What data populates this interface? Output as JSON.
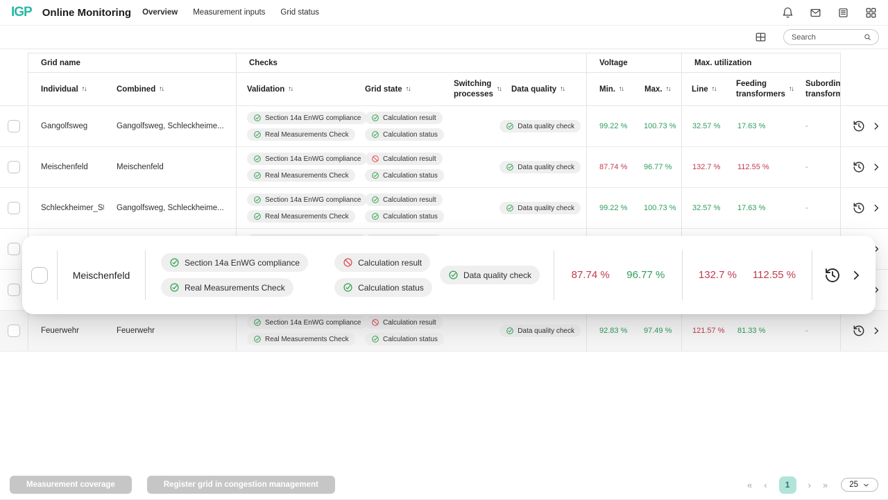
{
  "brand": {
    "logo_text": "IGP",
    "accent_color": "#2ab7a4"
  },
  "header": {
    "title": "Online Monitoring",
    "nav": [
      {
        "label": "Overview",
        "active": true
      },
      {
        "label": "Measurement inputs",
        "active": false
      },
      {
        "label": "Grid status",
        "active": false
      }
    ],
    "action_icons": [
      "bell-icon",
      "mail-icon",
      "news-icon",
      "apps-icon"
    ]
  },
  "toolbar": {
    "search_placeholder": "Search",
    "icons": [
      "table-columns-icon",
      "search-icon"
    ]
  },
  "table": {
    "sort_glyph": "↑↓",
    "group_headers": {
      "grid_name": "Grid name",
      "checks": "Checks",
      "voltage": "Voltage",
      "max_utilization": "Max. utilization"
    },
    "columns": {
      "individual": "Individual",
      "combined": "Combined",
      "validation": "Validation",
      "grid_state": "Grid state",
      "switching_line1": "Switching",
      "switching_line2": "processes",
      "data_quality": "Data quality",
      "min": "Min.",
      "max": "Max.",
      "line": "Line",
      "feeding_line1": "Feeding",
      "feeding_line2": "transformers",
      "subordinate_line1": "Subordinate",
      "subordinate_line2": "transformers"
    },
    "rows": [
      {
        "individual": "Gangolfsweg",
        "combined": "Gangolfsweg, Schleckheime...",
        "validation": [
          {
            "label": "Section 14a EnWG compliance",
            "status": "ok"
          },
          {
            "label": "Real Measurements Check",
            "status": "ok"
          }
        ],
        "grid_state": [
          {
            "label": "Calculation result",
            "status": "ok"
          },
          {
            "label": "Calculation status",
            "status": "ok"
          }
        ],
        "data_quality": [
          {
            "label": "Data quality check",
            "status": "ok"
          }
        ],
        "min": {
          "text": "99.22 %",
          "tone": "green"
        },
        "max": {
          "text": "100.73 %",
          "tone": "green"
        },
        "line": {
          "text": "32.57 %",
          "tone": "green"
        },
        "feeding": {
          "text": "17.63 %",
          "tone": "green"
        },
        "subordinate": "-",
        "highlighted": false
      },
      {
        "individual": "Meischenfeld",
        "combined": "Meischenfeld",
        "validation": [
          {
            "label": "Section 14a EnWG compliance",
            "status": "ok"
          },
          {
            "label": "Real Measurements Check",
            "status": "ok"
          }
        ],
        "grid_state": [
          {
            "label": "Calculation result",
            "status": "blocked"
          },
          {
            "label": "Calculation status",
            "status": "ok"
          }
        ],
        "data_quality": [
          {
            "label": "Data quality check",
            "status": "ok"
          }
        ],
        "min": {
          "text": "87.74 %",
          "tone": "red"
        },
        "max": {
          "text": "96.77 %",
          "tone": "green"
        },
        "line": {
          "text": "132.7 %",
          "tone": "red"
        },
        "feeding": {
          "text": "112.55 %",
          "tone": "red"
        },
        "subordinate": "-",
        "highlighted": false
      },
      {
        "individual": "Schleckheimer_Str",
        "combined": "Gangolfsweg, Schleckheime...",
        "validation": [
          {
            "label": "Section 14a EnWG compliance",
            "status": "ok"
          },
          {
            "label": "Real Measurements Check",
            "status": "ok"
          }
        ],
        "grid_state": [
          {
            "label": "Calculation result",
            "status": "ok"
          },
          {
            "label": "Calculation status",
            "status": "ok"
          }
        ],
        "data_quality": [
          {
            "label": "Data quality check",
            "status": "ok"
          }
        ],
        "min": {
          "text": "99.22 %",
          "tone": "green"
        },
        "max": {
          "text": "100.73 %",
          "tone": "green"
        },
        "line": {
          "text": "32.57 %",
          "tone": "green"
        },
        "feeding": {
          "text": "17.63 %",
          "tone": "green"
        },
        "subordinate": "-",
        "highlighted": false
      },
      {
        "individual": "",
        "combined": "",
        "validation": [
          {
            "label": "Section 14a EnWG compliance",
            "status": "ok"
          },
          {
            "label": "Real Measurements Check",
            "status": "ok"
          }
        ],
        "grid_state": [
          {
            "label": "Calculation result",
            "status": "ok"
          },
          {
            "label": "Calculation status",
            "status": "ok"
          }
        ],
        "data_quality": [],
        "min": {
          "text": "",
          "tone": "none"
        },
        "max": {
          "text": "",
          "tone": "none"
        },
        "line": {
          "text": "",
          "tone": "none"
        },
        "feeding": {
          "text": "",
          "tone": "none"
        },
        "subordinate": "",
        "highlighted": false
      },
      {
        "individual": "",
        "combined": "",
        "validation": [],
        "grid_state": [],
        "data_quality": [],
        "min": {
          "text": "",
          "tone": "none"
        },
        "max": {
          "text": "",
          "tone": "none"
        },
        "line": {
          "text": "",
          "tone": "none"
        },
        "feeding": {
          "text": "",
          "tone": "none"
        },
        "subordinate": "",
        "highlighted": false
      },
      {
        "individual": "Feuerwehr",
        "combined": "Feuerwehr",
        "validation": [
          {
            "label": "Section 14a EnWG compliance",
            "status": "ok"
          },
          {
            "label": "Real Measurements Check",
            "status": "ok"
          }
        ],
        "grid_state": [
          {
            "label": "Calculation result",
            "status": "blocked"
          },
          {
            "label": "Calculation status",
            "status": "ok"
          }
        ],
        "data_quality": [
          {
            "label": "Data quality check",
            "status": "ok"
          }
        ],
        "min": {
          "text": "92.83 %",
          "tone": "green"
        },
        "max": {
          "text": "97.49 %",
          "tone": "green"
        },
        "line": {
          "text": "121.57 %",
          "tone": "red"
        },
        "feeding": {
          "text": "81.33 %",
          "tone": "green"
        },
        "subordinate": "-",
        "highlighted": true
      }
    ]
  },
  "overlay_row": {
    "name": "Meischenfeld",
    "validation": [
      {
        "label": "Section 14a EnWG compliance",
        "status": "ok"
      },
      {
        "label": "Real Measurements Check",
        "status": "ok"
      }
    ],
    "grid_state": [
      {
        "label": "Calculation result",
        "status": "blocked"
      },
      {
        "label": "Calculation status",
        "status": "ok"
      }
    ],
    "data_quality": [
      {
        "label": "Data quality check",
        "status": "ok"
      }
    ],
    "min": {
      "text": "87.74 %",
      "tone": "red"
    },
    "max": {
      "text": "96.77 %",
      "tone": "green"
    },
    "line": {
      "text": "132.7 %",
      "tone": "red"
    },
    "feeding": {
      "text": "112.55 %",
      "tone": "red"
    }
  },
  "footer": {
    "buttons": [
      {
        "label": "Measurement coverage",
        "disabled": true
      },
      {
        "label": "Register grid in congestion management",
        "disabled": true
      }
    ],
    "pagination": {
      "first": "«",
      "prev": "‹",
      "page": "1",
      "next": "›",
      "last": "»",
      "page_size": "25"
    }
  }
}
